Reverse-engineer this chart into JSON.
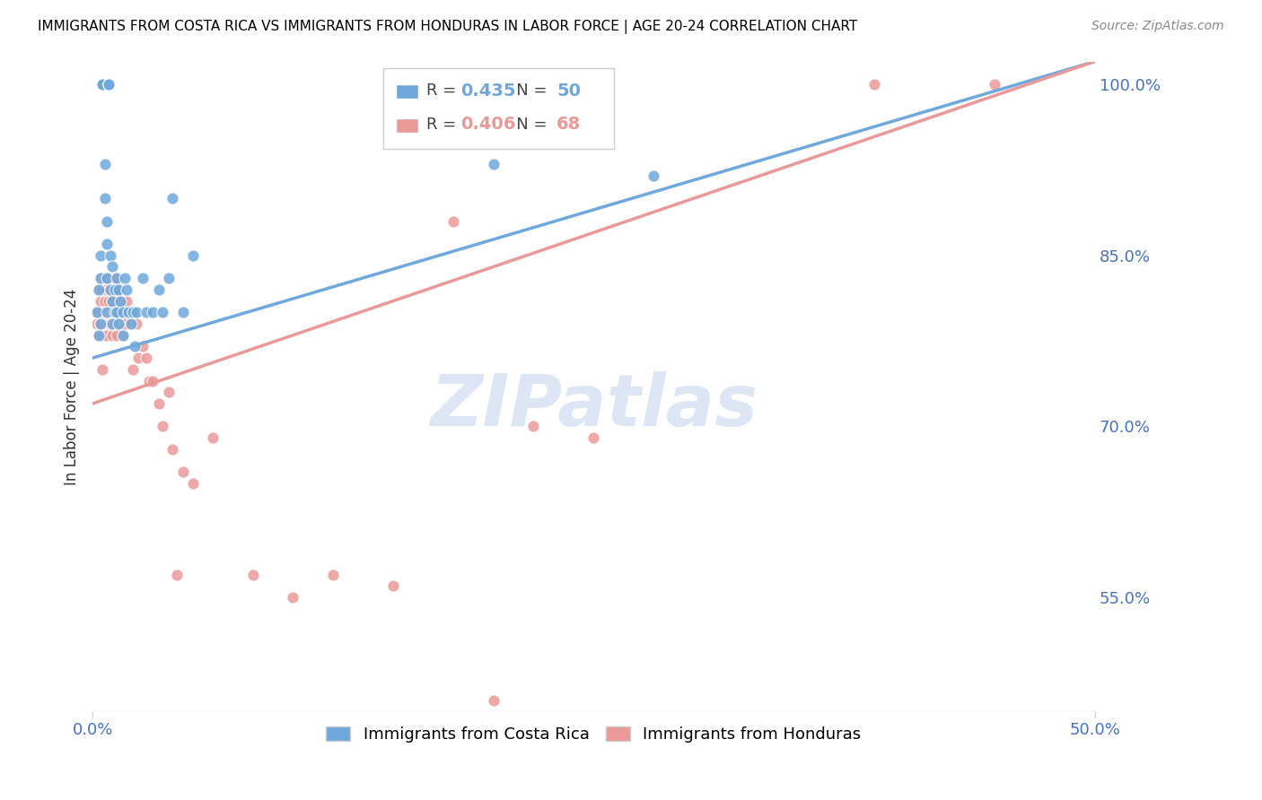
{
  "title": "IMMIGRANTS FROM COSTA RICA VS IMMIGRANTS FROM HONDURAS IN LABOR FORCE | AGE 20-24 CORRELATION CHART",
  "source": "Source: ZipAtlas.com",
  "ylabel": "In Labor Force | Age 20-24",
  "x_min": 0.0,
  "x_max": 0.5,
  "y_min": 0.45,
  "y_max": 1.02,
  "y_ticks_right": [
    1.0,
    0.85,
    0.7,
    0.55
  ],
  "y_tick_labels_right": [
    "100.0%",
    "85.0%",
    "70.0%",
    "55.0%"
  ],
  "costa_rica_color": "#6fa8dc",
  "honduras_color": "#ea9999",
  "costa_rica_R": 0.435,
  "costa_rica_N": 50,
  "honduras_R": 0.406,
  "honduras_N": 68,
  "watermark_text": "ZIPatlas",
  "watermark_color": "#dce6f5",
  "grid_color": "#cccccc",
  "background_color": "#ffffff",
  "title_color": "#000000",
  "right_axis_color": "#4472c4",
  "costa_rica_scatter_x": [
    0.002,
    0.003,
    0.003,
    0.004,
    0.004,
    0.004,
    0.005,
    0.005,
    0.005,
    0.006,
    0.006,
    0.007,
    0.007,
    0.007,
    0.007,
    0.008,
    0.008,
    0.008,
    0.009,
    0.009,
    0.01,
    0.01,
    0.01,
    0.011,
    0.011,
    0.012,
    0.012,
    0.013,
    0.013,
    0.014,
    0.015,
    0.015,
    0.016,
    0.017,
    0.018,
    0.019,
    0.02,
    0.021,
    0.022,
    0.025,
    0.027,
    0.03,
    0.033,
    0.035,
    0.038,
    0.04,
    0.045,
    0.05,
    0.2,
    0.28
  ],
  "costa_rica_scatter_y": [
    0.8,
    0.82,
    0.78,
    0.85,
    0.79,
    0.83,
    1.0,
    1.0,
    1.0,
    0.93,
    0.9,
    0.88,
    0.86,
    0.83,
    0.8,
    1.0,
    1.0,
    1.0,
    0.85,
    0.82,
    0.84,
    0.81,
    0.79,
    0.82,
    0.8,
    0.83,
    0.8,
    0.82,
    0.79,
    0.81,
    0.8,
    0.78,
    0.83,
    0.82,
    0.8,
    0.79,
    0.8,
    0.77,
    0.8,
    0.83,
    0.8,
    0.8,
    0.82,
    0.8,
    0.83,
    0.9,
    0.8,
    0.85,
    0.93,
    0.92
  ],
  "honduras_scatter_x": [
    0.002,
    0.002,
    0.003,
    0.003,
    0.003,
    0.004,
    0.004,
    0.004,
    0.005,
    0.005,
    0.005,
    0.005,
    0.006,
    0.006,
    0.006,
    0.007,
    0.007,
    0.007,
    0.008,
    0.008,
    0.008,
    0.009,
    0.009,
    0.009,
    0.01,
    0.01,
    0.01,
    0.011,
    0.011,
    0.012,
    0.012,
    0.012,
    0.013,
    0.013,
    0.014,
    0.014,
    0.015,
    0.015,
    0.016,
    0.017,
    0.018,
    0.019,
    0.02,
    0.02,
    0.022,
    0.023,
    0.025,
    0.027,
    0.028,
    0.03,
    0.033,
    0.035,
    0.038,
    0.04,
    0.042,
    0.045,
    0.05,
    0.06,
    0.08,
    0.1,
    0.12,
    0.15,
    0.18,
    0.2,
    0.22,
    0.25,
    0.39,
    0.45
  ],
  "honduras_scatter_y": [
    0.8,
    0.79,
    0.78,
    0.8,
    0.82,
    0.79,
    0.81,
    0.83,
    0.78,
    0.8,
    0.82,
    0.75,
    0.79,
    0.81,
    0.83,
    0.8,
    0.82,
    0.78,
    0.81,
    0.79,
    0.83,
    0.8,
    0.82,
    0.79,
    0.81,
    0.78,
    0.8,
    0.79,
    0.83,
    0.8,
    0.82,
    0.78,
    0.8,
    0.82,
    0.79,
    0.81,
    0.78,
    0.8,
    0.79,
    0.81,
    0.8,
    0.79,
    0.8,
    0.75,
    0.79,
    0.76,
    0.77,
    0.76,
    0.74,
    0.74,
    0.72,
    0.7,
    0.73,
    0.68,
    0.57,
    0.66,
    0.65,
    0.69,
    0.57,
    0.55,
    0.57,
    0.56,
    0.88,
    0.46,
    0.7,
    0.69,
    1.0,
    1.0
  ],
  "cr_line_x0": 0.0,
  "cr_line_x1": 0.5,
  "cr_line_y0": 0.76,
  "cr_line_y1": 1.02,
  "hn_line_x0": 0.0,
  "hn_line_x1": 0.5,
  "hn_line_y0": 0.72,
  "hn_line_y1": 1.02
}
